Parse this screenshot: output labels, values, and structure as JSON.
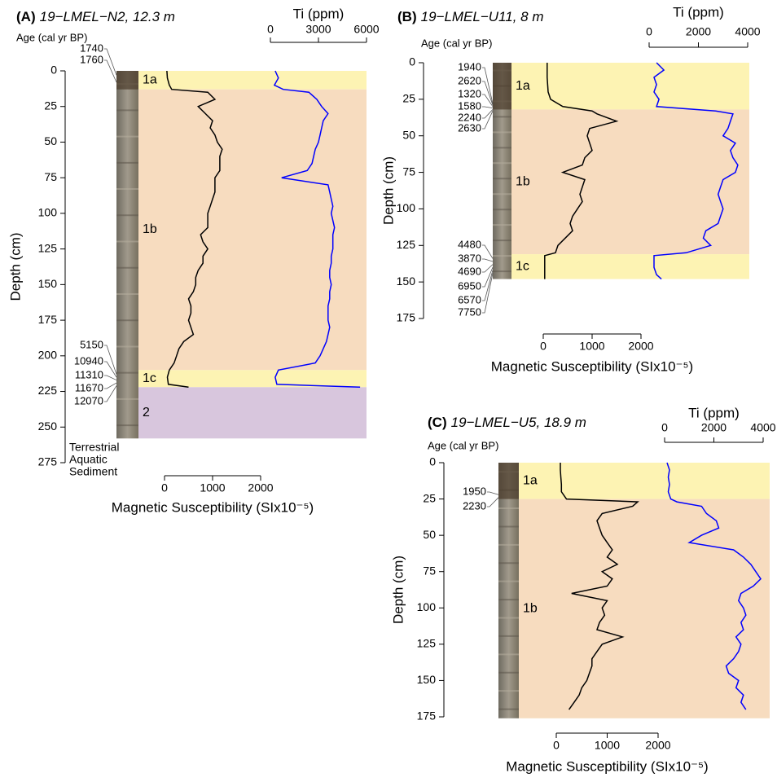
{
  "chart_data": [
    {
      "type": "line",
      "panel_label": "(A)",
      "title": "19−LMEL−N2, 12.3 m",
      "age_label": "Age (cal yr BP)",
      "ylabel": "Depth (cm)",
      "ylim": [
        0,
        275
      ],
      "yticks": [
        0,
        25,
        50,
        75,
        100,
        125,
        150,
        175,
        200,
        225,
        250,
        275
      ],
      "y": [
        0,
        5,
        10,
        13,
        15,
        20,
        25,
        30,
        35,
        40,
        45,
        50,
        55,
        60,
        65,
        70,
        75,
        80,
        85,
        90,
        95,
        100,
        105,
        110,
        115,
        120,
        125,
        130,
        135,
        140,
        145,
        150,
        155,
        160,
        165,
        170,
        175,
        180,
        185,
        190,
        195,
        200,
        205,
        210,
        215,
        220,
        222
      ],
      "series": [
        {
          "axis": "bottom",
          "xlabel": "Magnetic Susceptibility (SIx10⁻⁵)",
          "xlim": [
            0,
            2000
          ],
          "xticks": [
            0,
            1000,
            2000
          ],
          "color": "#000000",
          "values": [
            50,
            60,
            100,
            150,
            900,
            1050,
            700,
            850,
            1000,
            950,
            1050,
            1100,
            1200,
            1150,
            1150,
            1150,
            1050,
            1050,
            1050,
            1000,
            950,
            900,
            900,
            900,
            750,
            800,
            900,
            800,
            800,
            700,
            650,
            650,
            600,
            500,
            550,
            550,
            500,
            550,
            600,
            400,
            300,
            250,
            200,
            100,
            60,
            80,
            500
          ]
        },
        {
          "axis": "top",
          "xlabel": "Ti (ppm)",
          "xlim": [
            0,
            6000
          ],
          "xticks": [
            0,
            3000,
            6000
          ],
          "color": "#0000ff",
          "values": [
            300,
            500,
            250,
            800,
            2400,
            2900,
            3200,
            3600,
            3300,
            3200,
            3100,
            3000,
            2800,
            2700,
            2600,
            2300,
            700,
            3600,
            3700,
            3800,
            3900,
            3800,
            3900,
            4000,
            3900,
            3900,
            3900,
            3800,
            3800,
            3700,
            3700,
            3800,
            3700,
            3700,
            3600,
            3600,
            3600,
            3700,
            3600,
            3500,
            3300,
            3100,
            2800,
            500,
            300,
            400,
            5600
          ]
        }
      ],
      "bands": [
        {
          "label": "1a",
          "from": 0,
          "to": 13,
          "color": "#fdf3b3"
        },
        {
          "label": "1b",
          "from": 13,
          "to": 210,
          "color": "#f7dcbf"
        },
        {
          "label": "1c",
          "from": 210,
          "to": 222,
          "color": "#fdf3b3"
        },
        {
          "label": "2",
          "from": 222,
          "to": 258,
          "color": "#d8c6dd"
        }
      ],
      "ages": [
        {
          "value": 1740,
          "depth": 3,
          "color": "#000000"
        },
        {
          "value": 1760,
          "depth": 8,
          "color": "#000000"
        },
        {
          "value": 5150,
          "depth": 213,
          "color": "#e8202a"
        },
        {
          "value": 10940,
          "depth": 215,
          "color": "#e8202a"
        },
        {
          "value": 11310,
          "depth": 217,
          "color": "#000000"
        },
        {
          "value": 11670,
          "depth": 219,
          "color": "#e8202a"
        },
        {
          "value": 12070,
          "depth": 221,
          "color": "#000000"
        }
      ],
      "legend": [
        {
          "name": "Terrestrial",
          "color": "#2e3192"
        },
        {
          "name": "Aquatic",
          "color": "#000000"
        },
        {
          "name": "Sediment",
          "color": "#e8202a"
        }
      ]
    },
    {
      "type": "line",
      "panel_label": "(B)",
      "title": "19−LMEL−U11, 8 m",
      "age_label": "Age (cal yr BP)",
      "ylabel": "Depth (cm)",
      "ylim": [
        0,
        175
      ],
      "yticks": [
        0,
        25,
        50,
        75,
        100,
        125,
        150,
        175
      ],
      "y": [
        0,
        5,
        10,
        15,
        20,
        25,
        30,
        33,
        35,
        40,
        45,
        50,
        55,
        60,
        65,
        70,
        75,
        80,
        85,
        90,
        95,
        100,
        105,
        110,
        115,
        120,
        125,
        130,
        132,
        135,
        140,
        145,
        148
      ],
      "series": [
        {
          "axis": "bottom",
          "xlabel": "Magnetic Susceptibility (SIx10⁻⁵)",
          "xlim": [
            0,
            2000
          ],
          "xticks": [
            0,
            1000,
            2000
          ],
          "color": "#000000",
          "values": [
            80,
            80,
            80,
            90,
            100,
            150,
            400,
            1000,
            1100,
            1500,
            950,
            900,
            950,
            1000,
            850,
            800,
            400,
            850,
            800,
            750,
            800,
            700,
            600,
            550,
            600,
            450,
            300,
            250,
            30,
            30,
            30,
            30,
            30
          ]
        },
        {
          "axis": "top",
          "xlabel": "Ti (ppm)",
          "xlim": [
            0,
            4000
          ],
          "xticks": [
            0,
            2000,
            4000
          ],
          "color": "#0000ff",
          "values": [
            300,
            600,
            200,
            300,
            200,
            400,
            300,
            2700,
            3400,
            3300,
            3200,
            3000,
            3500,
            3300,
            3400,
            3600,
            3500,
            3000,
            2900,
            2800,
            2900,
            3000,
            2900,
            2800,
            2300,
            2200,
            2500,
            1500,
            200,
            200,
            200,
            300,
            500
          ]
        }
      ],
      "bands": [
        {
          "label": "1a",
          "from": 0,
          "to": 32,
          "color": "#fdf3b3"
        },
        {
          "label": "1b",
          "from": 32,
          "to": 131,
          "color": "#f7dcbf"
        },
        {
          "label": "1c",
          "from": 131,
          "to": 148,
          "color": "#fdf3b3"
        }
      ],
      "ages": [
        {
          "value": 1940,
          "depth": 28,
          "color": "#000000"
        },
        {
          "value": 2620,
          "depth": 29,
          "color": "#000000"
        },
        {
          "value": 1320,
          "depth": 30,
          "color": "#2e3192"
        },
        {
          "value": 1580,
          "depth": 31,
          "color": "#2e3192"
        },
        {
          "value": 2240,
          "depth": 32,
          "color": "#000000"
        },
        {
          "value": 2630,
          "depth": 33,
          "color": "#e8202a"
        },
        {
          "value": 4480,
          "depth": 134,
          "color": "#e8202a"
        },
        {
          "value": 3870,
          "depth": 136,
          "color": "#2e3192"
        },
        {
          "value": 4690,
          "depth": 138,
          "color": "#e8202a"
        },
        {
          "value": 6950,
          "depth": 140,
          "color": "#2e3192"
        },
        {
          "value": 6570,
          "depth": 142,
          "color": "#2e3192"
        },
        {
          "value": 7750,
          "depth": 144,
          "color": "#000000"
        }
      ]
    },
    {
      "type": "line",
      "panel_label": "(C)",
      "title": "19−LMEL−U5, 18.9 m",
      "age_label": "Age (cal yr BP)",
      "ylabel": "Depth (cm)",
      "ylim": [
        0,
        175
      ],
      "yticks": [
        0,
        25,
        50,
        75,
        100,
        125,
        150,
        175
      ],
      "y": [
        0,
        5,
        10,
        15,
        20,
        25,
        27,
        30,
        35,
        40,
        45,
        50,
        55,
        60,
        65,
        70,
        75,
        80,
        85,
        90,
        95,
        100,
        105,
        110,
        115,
        120,
        125,
        130,
        135,
        140,
        145,
        150,
        155,
        160,
        165,
        170
      ],
      "series": [
        {
          "axis": "bottom",
          "xlabel": "Magnetic Susceptibility (SIx10⁻⁵)",
          "xlim": [
            0,
            2000
          ],
          "xticks": [
            0,
            1000,
            2000
          ],
          "color": "#000000",
          "values": [
            80,
            80,
            90,
            100,
            100,
            200,
            1600,
            1500,
            900,
            800,
            850,
            900,
            1000,
            1100,
            1000,
            1200,
            900,
            1100,
            1000,
            300,
            1000,
            900,
            950,
            850,
            800,
            1300,
            900,
            800,
            700,
            700,
            650,
            600,
            500,
            450,
            350,
            250
          ]
        },
        {
          "axis": "top",
          "xlabel": "Ti (ppm)",
          "xlim": [
            0,
            4000
          ],
          "xticks": [
            0,
            2000,
            4000
          ],
          "color": "#0000ff",
          "values": [
            100,
            200,
            150,
            200,
            150,
            250,
            500,
            1500,
            1700,
            2100,
            2200,
            1500,
            1000,
            2800,
            3200,
            3500,
            3700,
            3900,
            3600,
            3100,
            3000,
            3200,
            3300,
            3100,
            3200,
            2900,
            3100,
            3000,
            2800,
            2500,
            2600,
            3000,
            2900,
            3200,
            3100,
            3300
          ]
        }
      ],
      "bands": [
        {
          "label": "1a",
          "from": 0,
          "to": 25,
          "color": "#fdf3b3"
        },
        {
          "label": "1b",
          "from": 25,
          "to": 176,
          "color": "#f7dcbf"
        }
      ],
      "ages": [
        {
          "value": 1950,
          "depth": 22,
          "color": "#e8202a"
        },
        {
          "value": 2230,
          "depth": 24,
          "color": "#e8202a"
        }
      ]
    }
  ]
}
